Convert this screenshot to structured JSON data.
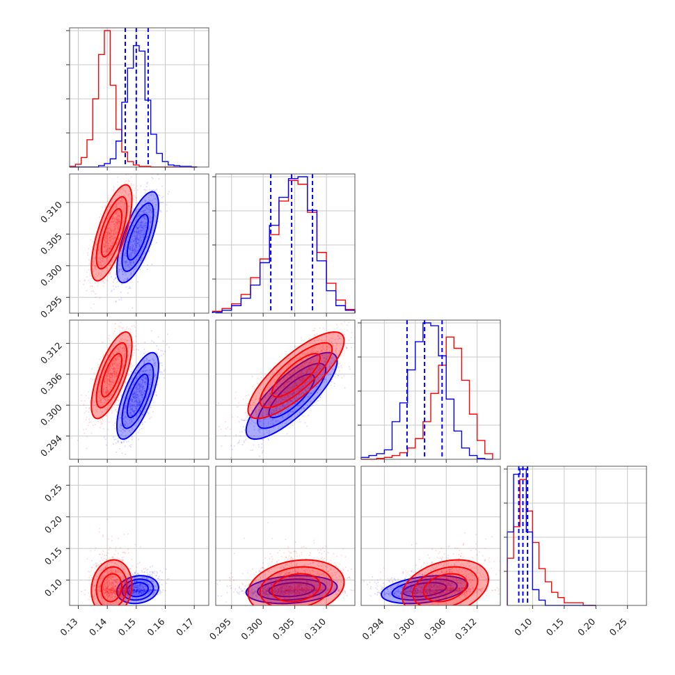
{
  "chart_data": {
    "type": "corner",
    "params": 4,
    "colors": {
      "run_a": "#ff0000",
      "run_b": "#0000ff"
    },
    "grid": true,
    "axes": [
      {
        "range": [
          0.127,
          0.175
        ],
        "ticks": [
          0.13,
          0.14,
          0.15,
          0.16,
          0.17
        ],
        "labels": [
          "0.13",
          "0.14",
          "0.15",
          "0.16",
          "0.17"
        ]
      },
      {
        "range": [
          0.2925,
          0.3145
        ],
        "ticks": [
          0.295,
          0.3,
          0.305,
          0.31
        ],
        "labels": [
          "0.295",
          "0.300",
          "0.305",
          "0.310"
        ]
      },
      {
        "range": [
          0.2895,
          0.3165
        ],
        "ticks": [
          0.294,
          0.3,
          0.306,
          0.312
        ],
        "labels": [
          "0.294",
          "0.300",
          "0.306",
          "0.312"
        ]
      },
      {
        "range": [
          0.06,
          0.28
        ],
        "ticks": [
          0.1,
          0.15,
          0.2,
          0.25
        ],
        "labels": [
          "0.10",
          "0.15",
          "0.20",
          "0.25"
        ]
      }
    ],
    "quantiles_series": "run_b",
    "quantiles": [
      [
        0.1462,
        0.15,
        0.1541
      ],
      [
        0.3012,
        0.3045,
        0.3078
      ],
      [
        0.2984,
        0.3018,
        0.3052
      ],
      [
        0.0782,
        0.0847,
        0.092
      ]
    ],
    "histograms": [
      {
        "edges": [
          0.127,
          0.129,
          0.131,
          0.133,
          0.135,
          0.137,
          0.139,
          0.141,
          0.143,
          0.145,
          0.147,
          0.149,
          0.151,
          0.153,
          0.155,
          0.157,
          0.159,
          0.161,
          0.163,
          0.165,
          0.167,
          0.169,
          0.171
        ],
        "series": [
          {
            "id": "run_a",
            "counts": [
              1,
              4,
              14,
              40,
              100,
              165,
              200,
              120,
              55,
              22,
              8,
              3,
              1,
              1,
              0,
              0,
              0,
              0,
              0,
              0,
              0,
              0
            ]
          },
          {
            "id": "run_b",
            "counts": [
              0,
              0,
              0,
              0,
              0,
              2,
              5,
              12,
              38,
              95,
              145,
              178,
              170,
              98,
              48,
              20,
              8,
              3,
              2,
              1,
              1,
              0
            ]
          }
        ]
      },
      {
        "edges": [
          0.292,
          0.2935,
          0.295,
          0.2965,
          0.298,
          0.2995,
          0.301,
          0.3025,
          0.304,
          0.3055,
          0.307,
          0.3085,
          0.31,
          0.3115,
          0.313,
          0.3145
        ],
        "series": [
          {
            "id": "run_a",
            "counts": [
              2,
              5,
              10,
              20,
              38,
              58,
              84,
              120,
              142,
              138,
              108,
              65,
              32,
              14,
              4
            ]
          },
          {
            "id": "run_b",
            "counts": [
              1,
              3,
              8,
              16,
              30,
              54,
              94,
              124,
              144,
              146,
              110,
              56,
              24,
              8,
              3
            ]
          }
        ]
      },
      {
        "edges": [
          0.2895,
          0.291,
          0.2925,
          0.294,
          0.2955,
          0.297,
          0.2985,
          0.3,
          0.3015,
          0.303,
          0.3045,
          0.306,
          0.3075,
          0.309,
          0.3105,
          0.312,
          0.3135,
          0.315
        ],
        "series": [
          {
            "id": "run_a",
            "counts": [
              0,
              0,
              1,
              2,
              4,
              7,
              12,
              22,
              40,
              70,
              100,
              130,
              118,
              84,
              48,
              20,
              6
            ]
          },
          {
            "id": "run_b",
            "counts": [
              2,
              4,
              6,
              10,
              40,
              60,
              95,
              125,
              145,
              142,
              110,
              64,
              30,
              12,
              4,
              1,
              0
            ]
          }
        ]
      },
      {
        "edges": [
          0.06,
          0.07,
          0.08,
          0.09,
          0.1,
          0.11,
          0.12,
          0.13,
          0.14,
          0.15,
          0.16,
          0.17,
          0.18,
          0.19,
          0.2
        ],
        "series": [
          {
            "id": "run_a",
            "counts": [
              18,
              30,
              48,
              36,
              24,
              14,
              9,
              5,
              3,
              1,
              1,
              1,
              0,
              0
            ]
          },
          {
            "id": "run_b",
            "counts": [
              28,
              50,
              52,
              28,
              6,
              2,
              0,
              0,
              0,
              0,
              0,
              0,
              0,
              0
            ]
          }
        ]
      }
    ],
    "distributions": {
      "run_a": {
        "mean": [
          0.1415,
          0.3052,
          0.3058,
          0.088
        ],
        "sd": [
          0.0035,
          0.0038,
          0.0042,
          0.022
        ]
      },
      "run_b": {
        "mean": [
          0.1505,
          0.3045,
          0.3018,
          0.085
        ],
        "sd": [
          0.0036,
          0.0036,
          0.0042,
          0.011
        ]
      }
    },
    "correlations": {
      "run_a": {
        "1-0": 0.7,
        "2-0": 0.7,
        "2-1": 0.8,
        "3-0": 0.1,
        "3-1": 0.2,
        "3-2": 0.3
      },
      "run_b": {
        "1-0": 0.7,
        "2-0": 0.7,
        "2-1": 0.8,
        "3-0": 0.15,
        "3-1": 0.2,
        "3-2": 0.35
      }
    },
    "contour_levels_sigma": [
      1,
      1.5,
      2
    ]
  }
}
